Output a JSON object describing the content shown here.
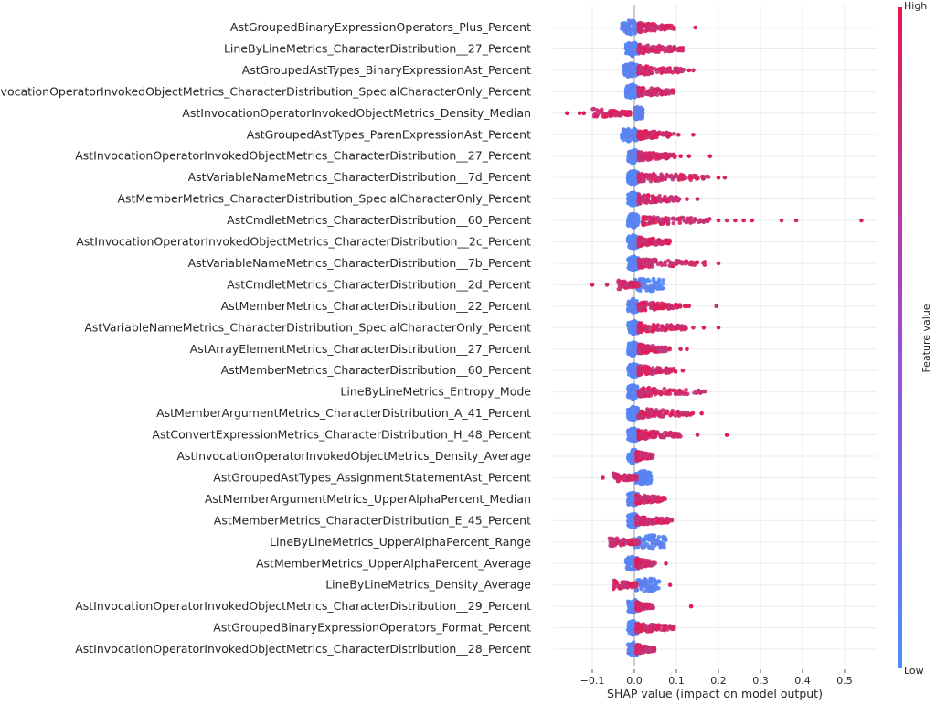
{
  "chart_data": {
    "type": "scatter",
    "subtype": "shap-beeswarm",
    "xlabel": "SHAP value (impact on model output)",
    "xlim": [
      -0.19,
      0.57
    ],
    "xticks": [
      -0.1,
      0.0,
      0.1,
      0.2,
      0.3,
      0.4,
      0.5
    ],
    "xtick_labels": [
      "−0.1",
      "0.0",
      "0.1",
      "0.2",
      "0.3",
      "0.4",
      "0.5"
    ],
    "grid": true,
    "colorbar": {
      "label": "Feature value",
      "high_label": "High",
      "low_label": "Low",
      "low_color": "#4e8cff",
      "high_color": "#e8174f"
    },
    "features": [
      {
        "name": "AstGroupedBinaryExpressionOperators_Plus_Percent",
        "low_range": [
          -0.03,
          0.01
        ],
        "high_range": [
          0.01,
          0.1
        ],
        "outliers": [
          0.145
        ]
      },
      {
        "name": "LineByLineMetrics_CharacterDistribution__27_Percent",
        "low_range": [
          -0.02,
          0.01
        ],
        "high_range": [
          0.01,
          0.12
        ],
        "outliers": []
      },
      {
        "name": "AstGroupedAstTypes_BinaryExpressionAst_Percent",
        "low_range": [
          -0.025,
          0.01
        ],
        "high_range": [
          0.01,
          0.12
        ],
        "outliers": [
          0.13,
          0.14
        ]
      },
      {
        "name": "AstInvocationOperatorInvokedObjectMetrics_CharacterDistribution_SpecialCharacterOnly_Percent",
        "low_range": [
          -0.02,
          0.01
        ],
        "high_range": [
          0.01,
          0.095
        ],
        "outliers": []
      },
      {
        "name": "AstInvocationOperatorInvokedObjectMetrics_Density_Median",
        "low_range": [
          0.0,
          0.02
        ],
        "high_range": [
          -0.1,
          -0.01
        ],
        "outliers": [
          -0.16,
          -0.13,
          -0.12
        ]
      },
      {
        "name": "AstGroupedAstTypes_ParenExpressionAst_Percent",
        "low_range": [
          -0.03,
          0.01
        ],
        "high_range": [
          0.01,
          0.095
        ],
        "outliers": [
          0.105,
          0.14
        ]
      },
      {
        "name": "AstInvocationOperatorInvokedObjectMetrics_CharacterDistribution__27_Percent",
        "low_range": [
          -0.015,
          0.01
        ],
        "high_range": [
          0.01,
          0.1
        ],
        "outliers": [
          0.11,
          0.13,
          0.18
        ]
      },
      {
        "name": "AstVariableNameMetrics_CharacterDistribution__7d_Percent",
        "low_range": [
          -0.015,
          0.01
        ],
        "high_range": [
          0.01,
          0.18
        ],
        "outliers": [
          0.2,
          0.215
        ]
      },
      {
        "name": "AstMemberMetrics_CharacterDistribution_SpecialCharacterOnly_Percent",
        "low_range": [
          -0.015,
          0.01
        ],
        "high_range": [
          0.01,
          0.11
        ],
        "outliers": [
          0.125,
          0.15
        ]
      },
      {
        "name": "AstCmdletMetrics_CharacterDistribution__60_Percent",
        "low_range": [
          -0.015,
          0.01
        ],
        "high_range": [
          0.02,
          0.18
        ],
        "outliers": [
          0.2,
          0.22,
          0.24,
          0.26,
          0.28,
          0.35,
          0.385,
          0.54
        ]
      },
      {
        "name": "AstInvocationOperatorInvokedObjectMetrics_CharacterDistribution__2c_Percent",
        "low_range": [
          -0.015,
          0.01
        ],
        "high_range": [
          0.01,
          0.085
        ],
        "outliers": []
      },
      {
        "name": "AstVariableNameMetrics_CharacterDistribution__7b_Percent",
        "low_range": [
          -0.015,
          0.01
        ],
        "high_range": [
          0.01,
          0.17
        ],
        "outliers": [
          0.2
        ]
      },
      {
        "name": "AstCmdletMetrics_CharacterDistribution__2d_Percent",
        "low_range": [
          0.0,
          0.07
        ],
        "high_range": [
          -0.04,
          0.01
        ],
        "outliers": [
          -0.1,
          -0.065
        ]
      },
      {
        "name": "AstMemberMetrics_CharacterDistribution__22_Percent",
        "low_range": [
          -0.015,
          0.01
        ],
        "high_range": [
          0.01,
          0.11
        ],
        "outliers": [
          0.12,
          0.125,
          0.13,
          0.195
        ]
      },
      {
        "name": "AstVariableNameMetrics_CharacterDistribution_SpecialCharacterOnly_Percent",
        "low_range": [
          -0.015,
          0.01
        ],
        "high_range": [
          0.01,
          0.125
        ],
        "outliers": [
          0.14,
          0.165,
          0.2
        ]
      },
      {
        "name": "AstArrayElementMetrics_CharacterDistribution__27_Percent",
        "low_range": [
          -0.015,
          0.01
        ],
        "high_range": [
          0.01,
          0.085
        ],
        "outliers": [
          0.11,
          0.125
        ]
      },
      {
        "name": "AstMemberMetrics_CharacterDistribution__60_Percent",
        "low_range": [
          -0.015,
          0.01
        ],
        "high_range": [
          0.01,
          0.1
        ],
        "outliers": [
          0.115
        ]
      },
      {
        "name": "LineByLineMetrics_Entropy_Mode",
        "low_range": [
          -0.015,
          0.01
        ],
        "high_range": [
          0.01,
          0.17
        ],
        "outliers": []
      },
      {
        "name": "AstMemberArgumentMetrics_CharacterDistribution_A_41_Percent",
        "low_range": [
          -0.015,
          0.01
        ],
        "high_range": [
          0.01,
          0.14
        ],
        "outliers": [
          0.16
        ]
      },
      {
        "name": "AstConvertExpressionMetrics_CharacterDistribution_H_48_Percent",
        "low_range": [
          -0.015,
          0.01
        ],
        "high_range": [
          0.01,
          0.11
        ],
        "outliers": [
          0.15,
          0.22
        ]
      },
      {
        "name": "AstInvocationOperatorInvokedObjectMetrics_Density_Average",
        "low_range": [
          -0.015,
          0.01
        ],
        "high_range": [
          0.005,
          0.045
        ],
        "outliers": []
      },
      {
        "name": "AstGroupedAstTypes_AssignmentStatementAst_Percent",
        "low_range": [
          0.0,
          0.04
        ],
        "high_range": [
          -0.05,
          0.005
        ],
        "outliers": [
          -0.075
        ]
      },
      {
        "name": "AstMemberArgumentMetrics_UpperAlphaPercent_Median",
        "low_range": [
          -0.015,
          0.01
        ],
        "high_range": [
          0.005,
          0.075
        ],
        "outliers": []
      },
      {
        "name": "AstMemberMetrics_CharacterDistribution_E_45_Percent",
        "low_range": [
          -0.015,
          0.01
        ],
        "high_range": [
          0.005,
          0.09
        ],
        "outliers": []
      },
      {
        "name": "LineByLineMetrics_UpperAlphaPercent_Range",
        "low_range": [
          0.0,
          0.075
        ],
        "high_range": [
          -0.06,
          0.01
        ],
        "outliers": []
      },
      {
        "name": "AstMemberMetrics_UpperAlphaPercent_Average",
        "low_range": [
          -0.02,
          0.01
        ],
        "high_range": [
          0.005,
          0.05
        ],
        "outliers": [
          0.075
        ]
      },
      {
        "name": "LineByLineMetrics_Density_Average",
        "low_range": [
          0.0,
          0.06
        ],
        "high_range": [
          -0.05,
          0.005
        ],
        "outliers": [
          0.085
        ]
      },
      {
        "name": "AstInvocationOperatorInvokedObjectMetrics_CharacterDistribution__29_Percent",
        "low_range": [
          -0.015,
          0.01
        ],
        "high_range": [
          0.005,
          0.045
        ],
        "outliers": [
          0.135
        ]
      },
      {
        "name": "AstGroupedBinaryExpressionOperators_Format_Percent",
        "low_range": [
          -0.015,
          0.01
        ],
        "high_range": [
          0.005,
          0.095
        ],
        "outliers": []
      },
      {
        "name": "AstInvocationOperatorInvokedObjectMetrics_CharacterDistribution__28_Percent",
        "low_range": [
          -0.015,
          0.01
        ],
        "high_range": [
          0.005,
          0.05
        ],
        "outliers": []
      }
    ]
  }
}
